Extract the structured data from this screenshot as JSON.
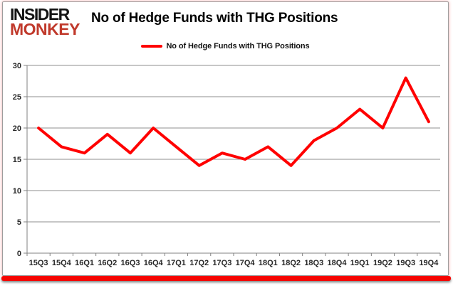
{
  "brand": {
    "line1": "INSIDER",
    "line2": "MONKEY",
    "line1_color": "#141414",
    "line2_color": "#c0392b"
  },
  "header": {
    "title": "No of Hedge Funds with THG Positions"
  },
  "legend": {
    "label": "No of Hedge Funds with THG Positions",
    "line_color": "#ff0000"
  },
  "chart_data": {
    "type": "line",
    "title": "No of Hedge Funds with THG Positions",
    "categories": [
      "15Q3",
      "15Q4",
      "16Q1",
      "16Q2",
      "16Q3",
      "16Q4",
      "17Q1",
      "17Q2",
      "17Q3",
      "17Q4",
      "18Q1",
      "18Q2",
      "18Q3",
      "18Q4",
      "19Q1",
      "19Q2",
      "19Q3",
      "19Q4"
    ],
    "series": [
      {
        "name": "No of Hedge Funds with THG Positions",
        "values": [
          20,
          17,
          16,
          19,
          16,
          20,
          17,
          14,
          16,
          15,
          17,
          14,
          18,
          20,
          23,
          20,
          28,
          21
        ],
        "color": "#ff0000"
      }
    ],
    "xlabel": "",
    "ylabel": "",
    "ylim": [
      0,
      30
    ],
    "yticks": [
      0,
      5,
      10,
      15,
      20,
      25,
      30
    ],
    "grid": true,
    "gridline_color": "#8f8f8f",
    "axis_color": "#808080",
    "legend_position": "top-center"
  }
}
